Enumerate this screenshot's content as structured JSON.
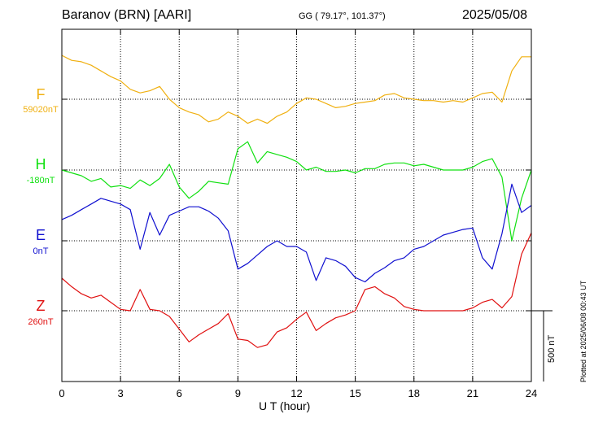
{
  "header": {
    "station": "Baranov (BRN)  [AARI]",
    "coords": "GG ( 79.17°, 101.37°)",
    "date": "2025/05/08"
  },
  "components": [
    {
      "name": "F",
      "baseline": "59020nT",
      "color": "#f0b010"
    },
    {
      "name": "H",
      "baseline": "-180nT",
      "color": "#10e010"
    },
    {
      "name": "E",
      "baseline": "0nT",
      "color": "#1010d0"
    },
    {
      "name": "Z",
      "baseline": "260nT",
      "color": "#e01010"
    }
  ],
  "xaxis": {
    "label": "U T (hour)",
    "ticks": [
      "0",
      "3",
      "6",
      "9",
      "12",
      "15",
      "18",
      "21",
      "24"
    ]
  },
  "scale_bar": {
    "label": "500 nT"
  },
  "footnote": "Plotted at 2025/06/08 00:43 UT",
  "chart_data": {
    "type": "line",
    "xlabel": "U T (hour)",
    "xlim": [
      0,
      24
    ],
    "scale_nT": 500,
    "series": [
      {
        "name": "F",
        "color": "#f0b010",
        "baseline_nT": 59020,
        "step_h": 0.5,
        "values": [
          310,
          275,
          265,
          240,
          200,
          160,
          130,
          70,
          45,
          60,
          90,
          0,
          -60,
          -90,
          -110,
          -160,
          -140,
          -90,
          -120,
          -170,
          -140,
          -170,
          -120,
          -90,
          -30,
          10,
          0,
          -30,
          -60,
          -50,
          -30,
          -20,
          -10,
          30,
          40,
          10,
          0,
          -10,
          -10,
          -20,
          -10,
          -20,
          10,
          40,
          50,
          -20,
          200,
          300,
          300
        ]
      },
      {
        "name": "H",
        "color": "#10e010",
        "baseline_nT": -180,
        "step_h": 0.5,
        "values": [
          0,
          -20,
          -40,
          -80,
          -60,
          -120,
          -110,
          -130,
          -70,
          -110,
          -60,
          40,
          -120,
          -200,
          -150,
          -80,
          -90,
          -100,
          150,
          200,
          50,
          130,
          110,
          90,
          60,
          0,
          20,
          -10,
          -10,
          0,
          -20,
          10,
          10,
          40,
          50,
          50,
          30,
          40,
          20,
          0,
          0,
          0,
          20,
          60,
          80,
          -50,
          -500,
          -200,
          0
        ]
      },
      {
        "name": "E",
        "color": "#1010d0",
        "baseline_nT": 0,
        "step_h": 0.5,
        "values": [
          150,
          180,
          220,
          260,
          300,
          280,
          260,
          220,
          -60,
          200,
          40,
          180,
          210,
          240,
          240,
          210,
          160,
          70,
          -200,
          -160,
          -100,
          -40,
          0,
          -40,
          -40,
          -80,
          -280,
          -120,
          -140,
          -180,
          -260,
          -290,
          -230,
          -190,
          -140,
          -120,
          -60,
          -40,
          0,
          40,
          60,
          80,
          90,
          -120,
          -200,
          50,
          400,
          200,
          250
        ]
      },
      {
        "name": "Z",
        "color": "#e01010",
        "baseline_nT": 260,
        "step_h": 0.5,
        "values": [
          230,
          170,
          120,
          90,
          110,
          60,
          10,
          0,
          150,
          10,
          0,
          -40,
          -130,
          -220,
          -170,
          -130,
          -90,
          -20,
          -200,
          -210,
          -260,
          -240,
          -150,
          -120,
          -60,
          -10,
          -140,
          -90,
          -50,
          -30,
          0,
          150,
          170,
          120,
          90,
          30,
          10,
          0,
          0,
          0,
          0,
          0,
          20,
          60,
          80,
          20,
          100,
          400,
          550
        ]
      }
    ]
  }
}
